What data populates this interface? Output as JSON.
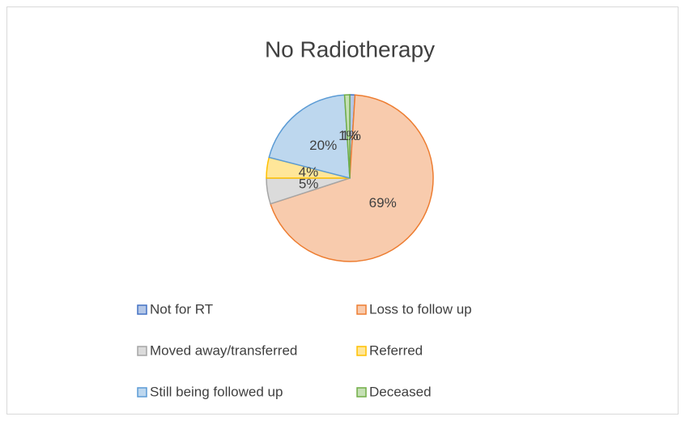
{
  "chart_data": {
    "type": "pie",
    "title": "No Radiotherapy",
    "categories": [
      "Not for RT",
      "Loss to follow up",
      "Moved away/transferred",
      "Referred",
      "Still being followed up",
      "Deceased"
    ],
    "values": [
      1,
      69,
      5,
      4,
      20,
      1
    ],
    "value_labels": [
      "1%",
      "69%",
      "5%",
      "4%",
      "20%",
      "1%"
    ],
    "colors": [
      "#4472c4",
      "#ed7d31",
      "#a5a5a5",
      "#ffc000",
      "#5b9bd5",
      "#70ad47"
    ],
    "fills": [
      "#b4c7e7",
      "#f8cbad",
      "#dbdbdb",
      "#ffe699",
      "#bdd7ee",
      "#c5e0b4"
    ],
    "legend": "bottom"
  }
}
